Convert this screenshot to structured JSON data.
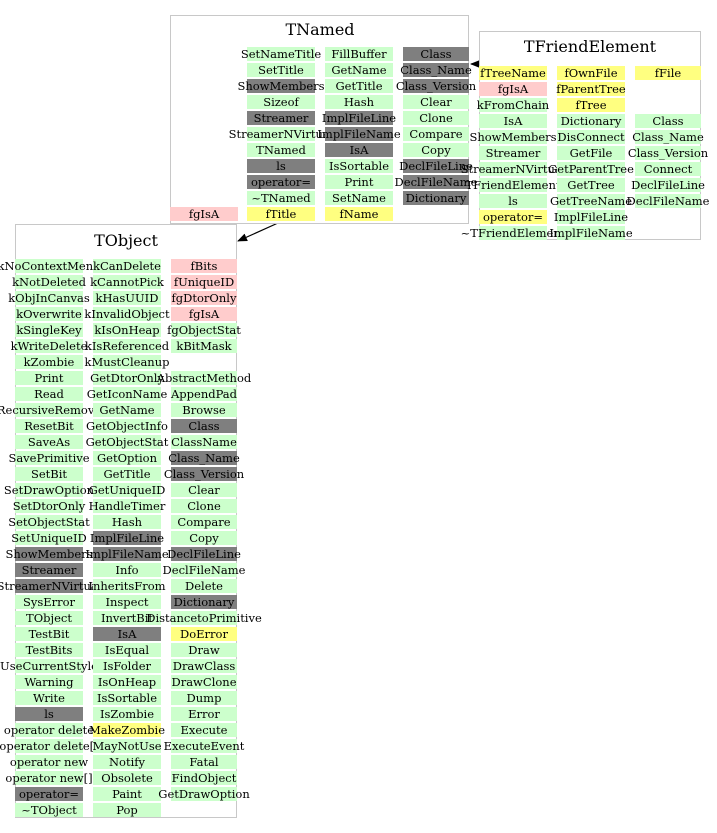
{
  "colors": {
    "method": "#ccffcc",
    "overridden": "#7f7f7f",
    "private_member": "#ffcccc",
    "member": "#ffff80",
    "box_border": "#c8c8c8"
  },
  "classes": {
    "tnamed": {
      "title": "TNamed",
      "columns": [
        [
          {
            "t": "SetNameTitle",
            "k": "m"
          },
          {
            "t": "SetTitle",
            "k": "m"
          },
          {
            "t": "ShowMembers",
            "k": "o"
          },
          {
            "t": "Sizeof",
            "k": "m"
          },
          {
            "t": "Streamer",
            "k": "o"
          },
          {
            "t": "StreamerNVirtual",
            "k": "m"
          },
          {
            "t": "TNamed",
            "k": "m"
          },
          {
            "t": "ls",
            "k": "o"
          },
          {
            "t": "operator=",
            "k": "o"
          },
          {
            "t": "~TNamed",
            "k": "m"
          },
          {
            "t": "fTitle",
            "k": "y"
          }
        ],
        [
          {
            "t": "FillBuffer",
            "k": "m"
          },
          {
            "t": "GetName",
            "k": "m"
          },
          {
            "t": "GetTitle",
            "k": "m"
          },
          {
            "t": "Hash",
            "k": "m"
          },
          {
            "t": "ImplFileLine",
            "k": "o"
          },
          {
            "t": "ImplFileName",
            "k": "o"
          },
          {
            "t": "IsA",
            "k": "o"
          },
          {
            "t": "IsSortable",
            "k": "m"
          },
          {
            "t": "Print",
            "k": "m"
          },
          {
            "t": "SetName",
            "k": "m"
          },
          {
            "t": "fName",
            "k": "y"
          }
        ],
        [
          {
            "t": "Class",
            "k": "o"
          },
          {
            "t": "Class_Name",
            "k": "o"
          },
          {
            "t": "Class_Version",
            "k": "o"
          },
          {
            "t": "Clear",
            "k": "m"
          },
          {
            "t": "Clone",
            "k": "m"
          },
          {
            "t": "Compare",
            "k": "m"
          },
          {
            "t": "Copy",
            "k": "m"
          },
          {
            "t": "DeclFileLine",
            "k": "o"
          },
          {
            "t": "DeclFileName",
            "k": "o"
          },
          {
            "t": "Dictionary",
            "k": "o"
          }
        ]
      ],
      "outside": {
        "t": "fgIsA",
        "k": "p"
      }
    },
    "tfriend": {
      "title": "TFriendElement",
      "columns": [
        [
          {
            "t": "fTreeName",
            "k": "y"
          },
          {
            "t": "fgIsA",
            "k": "p"
          },
          {
            "t": "kFromChain",
            "k": "m"
          },
          {
            "t": "IsA",
            "k": "m"
          },
          {
            "t": "ShowMembers",
            "k": "m"
          },
          {
            "t": "Streamer",
            "k": "m"
          },
          {
            "t": "StreamerNVirtual",
            "k": "m"
          },
          {
            "t": "TFriendElement",
            "k": "m"
          },
          {
            "t": "ls",
            "k": "m"
          },
          {
            "t": "operator=",
            "k": "y"
          },
          {
            "t": "~TFriendElement",
            "k": "m"
          }
        ],
        [
          {
            "t": "fOwnFile",
            "k": "y"
          },
          {
            "t": "fParentTree",
            "k": "y"
          },
          {
            "t": "fTree",
            "k": "y"
          },
          {
            "t": "Dictionary",
            "k": "m"
          },
          {
            "t": "DisConnect",
            "k": "m"
          },
          {
            "t": "GetFile",
            "k": "m"
          },
          {
            "t": "GetParentTree",
            "k": "m"
          },
          {
            "t": "GetTree",
            "k": "m"
          },
          {
            "t": "GetTreeName",
            "k": "m"
          },
          {
            "t": "ImplFileLine",
            "k": "m"
          },
          {
            "t": "ImplFileName",
            "k": "m"
          }
        ],
        [
          {
            "t": "fFile",
            "k": "y"
          },
          {
            "t": "",
            "k": "none"
          },
          {
            "t": "",
            "k": "none"
          },
          {
            "t": "Class",
            "k": "m"
          },
          {
            "t": "Class_Name",
            "k": "m"
          },
          {
            "t": "Class_Version",
            "k": "m"
          },
          {
            "t": "Connect",
            "k": "m"
          },
          {
            "t": "DeclFileLine",
            "k": "m"
          },
          {
            "t": "DeclFileName",
            "k": "m"
          }
        ]
      ]
    },
    "tobject": {
      "title": "TObject",
      "columns": [
        [
          {
            "t": "kNoContextMenu",
            "k": "m"
          },
          {
            "t": "kNotDeleted",
            "k": "m"
          },
          {
            "t": "kObjInCanvas",
            "k": "m"
          },
          {
            "t": "kOverwrite",
            "k": "m"
          },
          {
            "t": "kSingleKey",
            "k": "m"
          },
          {
            "t": "kWriteDelete",
            "k": "m"
          },
          {
            "t": "kZombie",
            "k": "m"
          },
          {
            "t": "Print",
            "k": "m"
          },
          {
            "t": "Read",
            "k": "m"
          },
          {
            "t": "RecursiveRemove",
            "k": "m"
          },
          {
            "t": "ResetBit",
            "k": "m"
          },
          {
            "t": "SaveAs",
            "k": "m"
          },
          {
            "t": "SavePrimitive",
            "k": "m"
          },
          {
            "t": "SetBit",
            "k": "m"
          },
          {
            "t": "SetDrawOption",
            "k": "m"
          },
          {
            "t": "SetDtorOnly",
            "k": "m"
          },
          {
            "t": "SetObjectStat",
            "k": "m"
          },
          {
            "t": "SetUniqueID",
            "k": "m"
          },
          {
            "t": "ShowMembers",
            "k": "o"
          },
          {
            "t": "Streamer",
            "k": "o"
          },
          {
            "t": "StreamerNVirtual",
            "k": "o"
          },
          {
            "t": "SysError",
            "k": "m"
          },
          {
            "t": "TObject",
            "k": "m"
          },
          {
            "t": "TestBit",
            "k": "m"
          },
          {
            "t": "TestBits",
            "k": "m"
          },
          {
            "t": "UseCurrentStyle",
            "k": "m"
          },
          {
            "t": "Warning",
            "k": "m"
          },
          {
            "t": "Write",
            "k": "m"
          },
          {
            "t": "ls",
            "k": "o"
          },
          {
            "t": "operator delete",
            "k": "m"
          },
          {
            "t": "operator delete[]",
            "k": "m"
          },
          {
            "t": "operator new",
            "k": "m"
          },
          {
            "t": "operator new[]",
            "k": "m"
          },
          {
            "t": "operator=",
            "k": "o"
          },
          {
            "t": "~TObject",
            "k": "m"
          }
        ],
        [
          {
            "t": "kCanDelete",
            "k": "m"
          },
          {
            "t": "kCannotPick",
            "k": "m"
          },
          {
            "t": "kHasUUID",
            "k": "m"
          },
          {
            "t": "kInvalidObject",
            "k": "m"
          },
          {
            "t": "kIsOnHeap",
            "k": "m"
          },
          {
            "t": "kIsReferenced",
            "k": "m"
          },
          {
            "t": "kMustCleanup",
            "k": "m"
          },
          {
            "t": "GetDtorOnly",
            "k": "m"
          },
          {
            "t": "GetIconName",
            "k": "m"
          },
          {
            "t": "GetName",
            "k": "m"
          },
          {
            "t": "GetObjectInfo",
            "k": "m"
          },
          {
            "t": "GetObjectStat",
            "k": "m"
          },
          {
            "t": "GetOption",
            "k": "m"
          },
          {
            "t": "GetTitle",
            "k": "m"
          },
          {
            "t": "GetUniqueID",
            "k": "m"
          },
          {
            "t": "HandleTimer",
            "k": "m"
          },
          {
            "t": "Hash",
            "k": "m"
          },
          {
            "t": "ImplFileLine",
            "k": "o"
          },
          {
            "t": "ImplFileName",
            "k": "o"
          },
          {
            "t": "Info",
            "k": "m"
          },
          {
            "t": "InheritsFrom",
            "k": "m"
          },
          {
            "t": "Inspect",
            "k": "m"
          },
          {
            "t": "InvertBit",
            "k": "m"
          },
          {
            "t": "IsA",
            "k": "o"
          },
          {
            "t": "IsEqual",
            "k": "m"
          },
          {
            "t": "IsFolder",
            "k": "m"
          },
          {
            "t": "IsOnHeap",
            "k": "m"
          },
          {
            "t": "IsSortable",
            "k": "m"
          },
          {
            "t": "IsZombie",
            "k": "m"
          },
          {
            "t": "MakeZombie",
            "k": "y"
          },
          {
            "t": "MayNotUse",
            "k": "m"
          },
          {
            "t": "Notify",
            "k": "m"
          },
          {
            "t": "Obsolete",
            "k": "m"
          },
          {
            "t": "Paint",
            "k": "m"
          },
          {
            "t": "Pop",
            "k": "m"
          }
        ],
        [
          {
            "t": "fBits",
            "k": "p"
          },
          {
            "t": "fUniqueID",
            "k": "p"
          },
          {
            "t": "fgDtorOnly",
            "k": "p"
          },
          {
            "t": "fgIsA",
            "k": "p"
          },
          {
            "t": "fgObjectStat",
            "k": "m"
          },
          {
            "t": "kBitMask",
            "k": "m"
          },
          {
            "t": "",
            "k": "none"
          },
          {
            "t": "AbstractMethod",
            "k": "m"
          },
          {
            "t": "AppendPad",
            "k": "m"
          },
          {
            "t": "Browse",
            "k": "m"
          },
          {
            "t": "Class",
            "k": "o"
          },
          {
            "t": "ClassName",
            "k": "m"
          },
          {
            "t": "Class_Name",
            "k": "o"
          },
          {
            "t": "Class_Version",
            "k": "o"
          },
          {
            "t": "Clear",
            "k": "m"
          },
          {
            "t": "Clone",
            "k": "m"
          },
          {
            "t": "Compare",
            "k": "m"
          },
          {
            "t": "Copy",
            "k": "m"
          },
          {
            "t": "DeclFileLine",
            "k": "o"
          },
          {
            "t": "DeclFileName",
            "k": "m"
          },
          {
            "t": "Delete",
            "k": "m"
          },
          {
            "t": "Dictionary",
            "k": "o"
          },
          {
            "t": "DistancetoPrimitive",
            "k": "m"
          },
          {
            "t": "DoError",
            "k": "y"
          },
          {
            "t": "Draw",
            "k": "m"
          },
          {
            "t": "DrawClass",
            "k": "m"
          },
          {
            "t": "DrawClone",
            "k": "m"
          },
          {
            "t": "Dump",
            "k": "m"
          },
          {
            "t": "Error",
            "k": "m"
          },
          {
            "t": "Execute",
            "k": "m"
          },
          {
            "t": "ExecuteEvent",
            "k": "m"
          },
          {
            "t": "Fatal",
            "k": "m"
          },
          {
            "t": "FindObject",
            "k": "m"
          },
          {
            "t": "GetDrawOption",
            "k": "m"
          }
        ]
      ]
    }
  }
}
